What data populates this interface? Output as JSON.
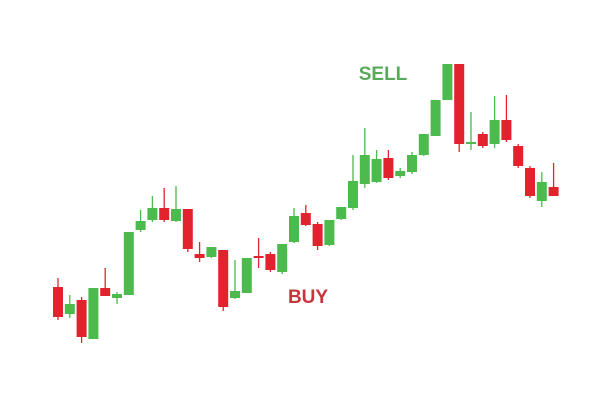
{
  "chart_data": {
    "type": "candlestick",
    "annotations": [
      {
        "text": "SELL",
        "color": "#5aa95a"
      },
      {
        "text": "BUY",
        "color": "#c9343d"
      }
    ],
    "up_color": "#4cba4c",
    "down_color": "#e2222d",
    "ylim": [
      0,
      408
    ],
    "open": [
      121,
      94,
      108,
      69,
      120,
      110,
      113,
      178,
      188,
      200,
      187,
      199,
      154,
      151,
      158,
      110,
      115,
      152,
      154,
      136,
      166,
      195,
      184,
      163,
      189,
      200,
      224,
      226,
      250,
      232,
      236,
      253,
      272,
      308,
      344,
      264,
      274,
      264,
      288,
      262,
      240,
      207,
      221
    ],
    "high": [
      130,
      113,
      111,
      120,
      140,
      116,
      176,
      198,
      212,
      220,
      222,
      199,
      166,
      161,
      158,
      148,
      150,
      170,
      156,
      164,
      200,
      203,
      186,
      188,
      201,
      253,
      280,
      258,
      258,
      240,
      256,
      274,
      308,
      344,
      344,
      296,
      276,
      312,
      313,
      264,
      242,
      236,
      245
    ],
    "low": [
      88,
      90,
      65,
      69,
      112,
      104,
      113,
      176,
      186,
      186,
      186,
      156,
      146,
      150,
      97,
      109,
      115,
      140,
      136,
      134,
      165,
      182,
      158,
      162,
      188,
      198,
      220,
      225,
      228,
      230,
      234,
      252,
      272,
      308,
      256,
      258,
      260,
      260,
      266,
      240,
      210,
      201,
      212
    ],
    "close": [
      91,
      104,
      71,
      120,
      112,
      114,
      176,
      187,
      200,
      188,
      199,
      159,
      150,
      161,
      101,
      117,
      150,
      150,
      138,
      164,
      192,
      183,
      162,
      188,
      201,
      227,
      253,
      249,
      230,
      237,
      253,
      274,
      308,
      344,
      264,
      266,
      262,
      288,
      268,
      242,
      212,
      226,
      212
    ]
  }
}
